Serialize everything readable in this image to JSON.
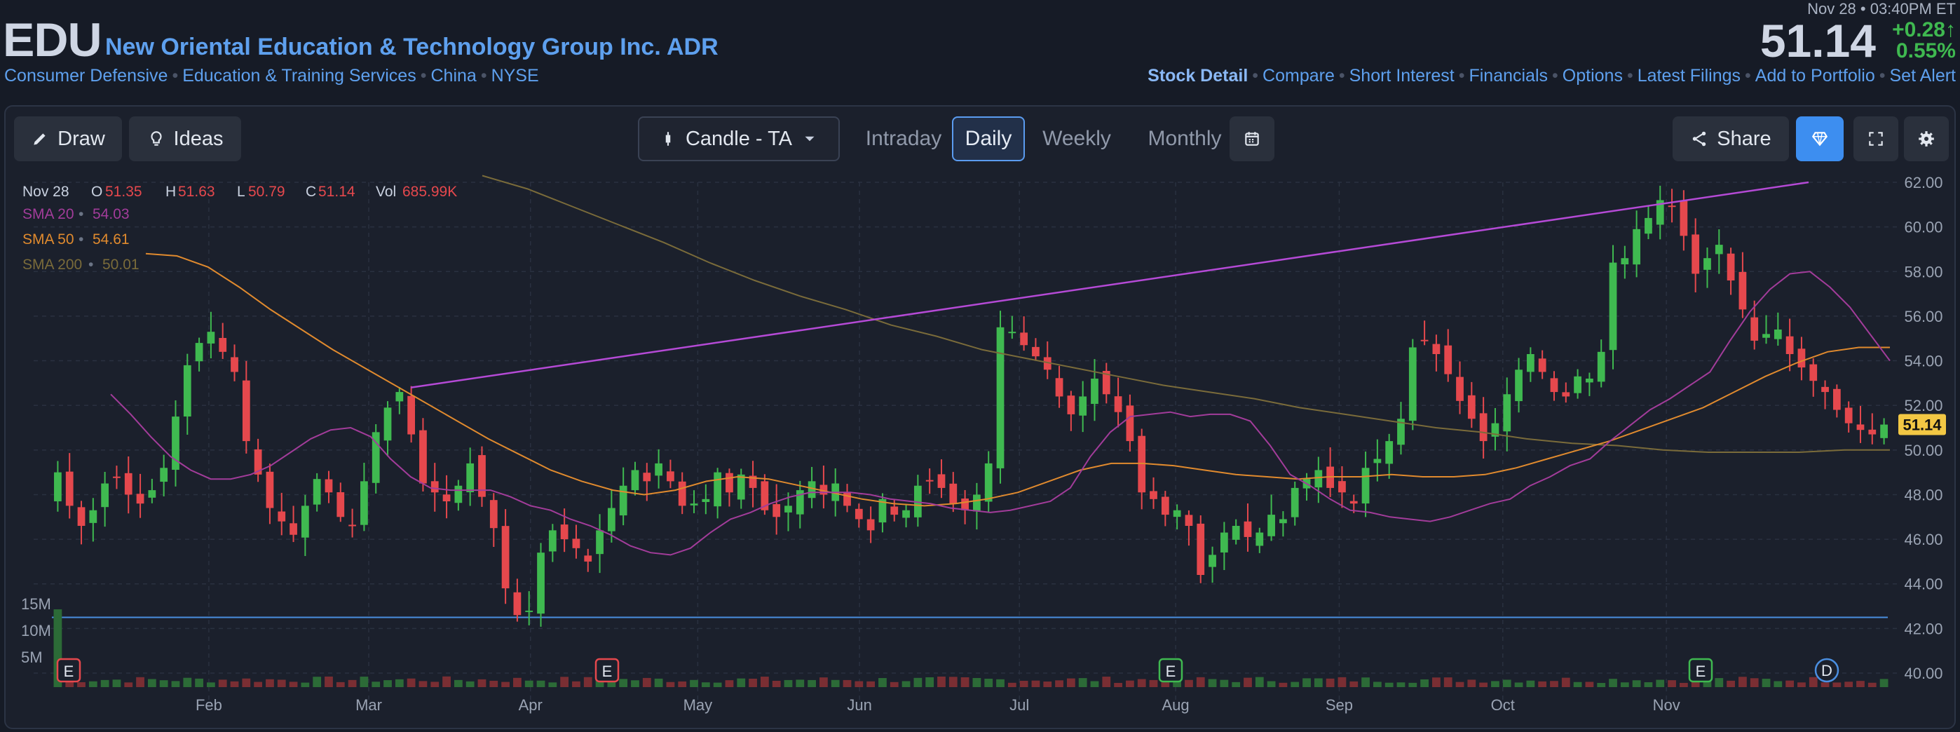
{
  "header": {
    "ticker": "EDU",
    "company": "New Oriental Education & Technology Group Inc. ADR",
    "tags": [
      "Consumer Defensive",
      "Education & Training Services",
      "China",
      "NYSE"
    ],
    "timestamp": "Nov 28 • 03:40PM ET",
    "price": "51.14",
    "change_abs": "+0.28",
    "change_pct": "0.55%",
    "up_arrow": "↑",
    "links": [
      "Stock Detail",
      "Compare",
      "Short Interest",
      "Financials",
      "Options",
      "Latest Filings",
      "Add to Portfolio",
      "Set Alert"
    ]
  },
  "toolbar": {
    "draw": "Draw",
    "ideas": "Ideas",
    "chart_type": "Candle - TA",
    "ranges": [
      "Intraday",
      "Daily",
      "Weekly",
      "Monthly"
    ],
    "selected_range": "Daily",
    "share": "Share"
  },
  "colors": {
    "up": "#3fb950",
    "down": "#e5484d",
    "sma20": "#a23c9a",
    "sma50": "#e08a2e",
    "sma200": "#7a6b3a",
    "trendline": "#b54ad6",
    "hline": "#4a8ee0",
    "price_tag": "#f2c744"
  },
  "chart_data": {
    "type": "candlestick",
    "ohlc_legend": {
      "date": "Nov 28",
      "o_label": "O",
      "o": "51.35",
      "h_label": "H",
      "h": "51.63",
      "l_label": "L",
      "l": "50.79",
      "c_label": "C",
      "c": "51.14",
      "vol_label": "Vol",
      "vol": "685.99K"
    },
    "indicators": [
      {
        "name": "SMA 20",
        "value": "54.03"
      },
      {
        "name": "SMA 50",
        "value": "54.61"
      },
      {
        "name": "SMA 200",
        "value": "50.01"
      }
    ],
    "y_ticks": [
      "62.00",
      "60.00",
      "58.00",
      "56.00",
      "54.00",
      "52.00",
      "50.00",
      "48.00",
      "46.00",
      "44.00",
      "42.00",
      "40.00"
    ],
    "ylim": [
      40,
      62
    ],
    "volume_ticks": [
      "15M",
      "10M",
      "5M"
    ],
    "volume_max": 15000000,
    "x_ticks": [
      "Feb",
      "Mar",
      "Apr",
      "May",
      "Jun",
      "Jul",
      "Aug",
      "Sep",
      "Oct",
      "Nov"
    ],
    "last_price": "51.14",
    "close_anchors": [
      49,
      47.5,
      46.6,
      47.3,
      48.5,
      48.8,
      48,
      47.6,
      48.2,
      49.2,
      51.5,
      53.8,
      54.8,
      55.3,
      54.4,
      53.5,
      50.4,
      48.9,
      47.4,
      46.8,
      46.2,
      47.5,
      48.7,
      48.1,
      47,
      46.6,
      48.6,
      50.8,
      51.9,
      52.6,
      50.7,
      48.5,
      48.1,
      47.7,
      48.4,
      49.4,
      47.9,
      46.5,
      43.8,
      42.6,
      42.8,
      45.4,
      46.4,
      46,
      45.6,
      45,
      46.4,
      47.4,
      48.4,
      49.1,
      48.6,
      49.4,
      48.6,
      47.5,
      47.6,
      47.8,
      49,
      48.1,
      48.9,
      48.3,
      47.3,
      47,
      47.5,
      48.2,
      48.6,
      48,
      48.5,
      47.5,
      46.9,
      46.4,
      47.8,
      47.1,
      47.3,
      48.4,
      48.6,
      48.3,
      47.6,
      47.3,
      48,
      49.4,
      55.5,
      55.3,
      54.7,
      54.2,
      53.6,
      52.4,
      51.6,
      52.4,
      53.2,
      52.5,
      51.7,
      50.4,
      48.1,
      47.8,
      47.1,
      47.3,
      46.6,
      44.4,
      45.3,
      46.3,
      46.6,
      46.1,
      46.3,
      47.1,
      46.9,
      48.3,
      48.7,
      49.1,
      48.3,
      48.1,
      47.6,
      49.2,
      49.6,
      50.4,
      51.4,
      54.6,
      54.9,
      54.3,
      53.4,
      52.2,
      51.4,
      50.4,
      51.2,
      52.5,
      53.6,
      54.3,
      53.5,
      52.6,
      52.4,
      53.3,
      53.2,
      54.4,
      58.4,
      58.6,
      59.9,
      60.4,
      61.2,
      60.9,
      59.6,
      57.9,
      58.6,
      59.2,
      57.6,
      56.3,
      54.9,
      55.2,
      55.4,
      54.3,
      53.7,
      53.1,
      52.6,
      51.8,
      51.2,
      50.9,
      50.7,
      51.14
    ],
    "sma20_values": [
      52.5,
      51.6,
      50.6,
      49.7,
      49.1,
      48.7,
      48.7,
      48.9,
      49.3,
      49.9,
      50.5,
      50.9,
      51,
      50.6,
      49.6,
      48.8,
      48.3,
      48.2,
      48.2,
      48.2,
      47.9,
      47.5,
      47.3,
      46.9,
      46.6,
      46.2,
      45.7,
      45.4,
      45.3,
      45.6,
      46.3,
      46.9,
      47.2,
      47.6,
      47.9,
      48.1,
      48.1,
      48.1,
      48,
      47.8,
      47.7,
      47.6,
      47.4,
      47.3,
      47.2,
      47.3,
      47.5,
      47.7,
      48.3,
      49.7,
      50.8,
      51.5,
      51.6,
      51.7,
      51.5,
      51.6,
      51.6,
      51.3,
      50.2,
      48.9,
      48.4,
      47.8,
      47.3,
      47.2,
      47,
      46.9,
      46.8,
      47,
      47.3,
      47.6,
      47.8,
      48.4,
      48.8,
      49.3,
      49.6,
      50.4,
      51.1,
      51.8,
      52.3,
      52.9,
      53.5,
      54.9,
      56.2,
      57.2,
      57.9,
      58,
      57.3,
      56.4,
      55.2,
      54
    ],
    "sma50_values": [
      58.8,
      58.7,
      58.2,
      57.3,
      56.3,
      55.4,
      54.5,
      53.7,
      52.9,
      52.1,
      51.3,
      50.5,
      49.8,
      49.1,
      48.6,
      48.2,
      48,
      48.2,
      48.6,
      48.8,
      48.7,
      48.4,
      48.1,
      47.8,
      47.6,
      47.5,
      47.6,
      47.8,
      48.1,
      48.6,
      49.1,
      49.4,
      49.4,
      49.3,
      49.1,
      48.9,
      48.8,
      48.7,
      48.8,
      48.8,
      48.9,
      48.8,
      48.8,
      48.9,
      49.2,
      49.6,
      50,
      50.4,
      50.9,
      51.4,
      51.9,
      52.6,
      53.3,
      53.9,
      54.4,
      54.6,
      54.6
    ],
    "sma200_values": [
      62.3,
      61.7,
      60.9,
      60.1,
      59.3,
      58.4,
      57.6,
      56.9,
      56.3,
      55.6,
      55.1,
      54.5,
      54.1,
      53.7,
      53.3,
      52.9,
      52.6,
      52.3,
      51.9,
      51.6,
      51.3,
      51,
      50.8,
      50.5,
      50.3,
      50.2,
      50,
      49.9,
      49.9,
      49.9,
      50,
      50
    ],
    "earnings_markers": [
      "E",
      "E",
      "E",
      "E"
    ],
    "dividend_markers": [
      "D"
    ]
  }
}
